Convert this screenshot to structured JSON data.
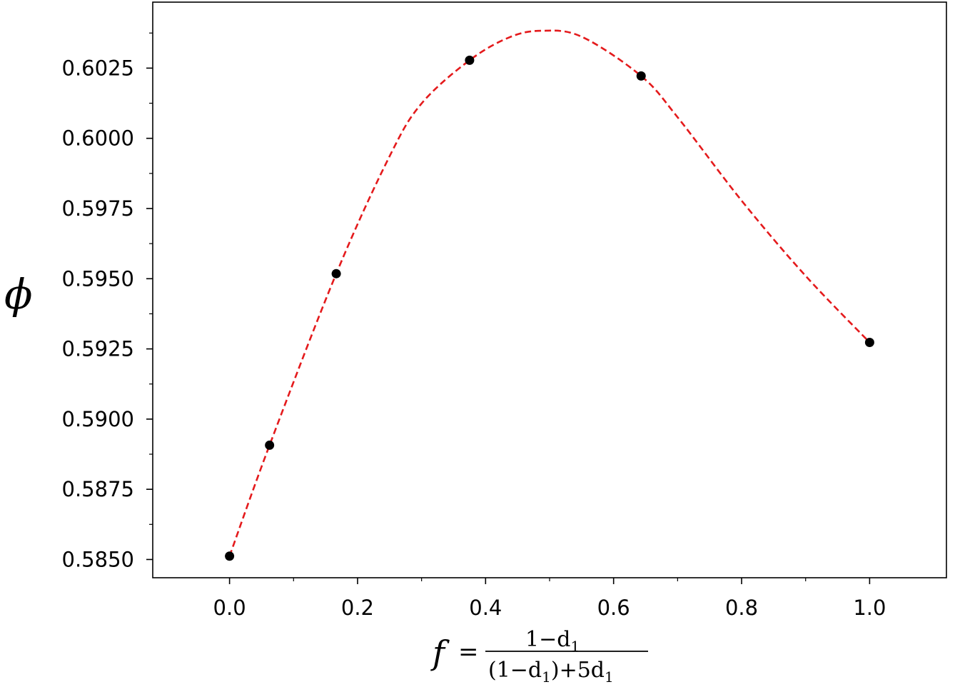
{
  "chart_data": {
    "type": "scatter",
    "title": "",
    "xlabel": "f = (1−d₁) / ((1−d₁)+5d₁)",
    "ylabel": "ϕ",
    "xlim": [
      -0.12,
      1.12
    ],
    "ylim": [
      0.58435,
      0.60485
    ],
    "x_ticks": [
      0.0,
      0.2,
      0.4,
      0.6,
      0.8,
      1.0
    ],
    "x_tick_labels": [
      "0.0",
      "0.2",
      "0.4",
      "0.6",
      "0.8",
      "1.0"
    ],
    "y_ticks": [
      0.585,
      0.5875,
      0.59,
      0.5925,
      0.595,
      0.5975,
      0.6,
      0.6025
    ],
    "y_tick_labels": [
      "0.5850",
      "0.5875",
      "0.5900",
      "0.5925",
      "0.5950",
      "0.5975",
      "0.6000",
      "0.6025"
    ],
    "grid": false,
    "legend": "none",
    "series": [
      {
        "kind": "points",
        "color": "#000000",
        "x": [
          0.0,
          0.0625,
          0.1667,
          0.375,
          0.643,
          1.0
        ],
        "y": [
          0.58512,
          0.58907,
          0.59518,
          0.60278,
          0.60222,
          0.59273
        ]
      },
      {
        "kind": "fit-curve",
        "style": "dashed",
        "color": "#e41a1c",
        "x": [
          0.0,
          0.0625,
          0.1667,
          0.25,
          0.3,
          0.375,
          0.4375,
          0.4875,
          0.55,
          0.643,
          0.7,
          0.8,
          0.9,
          1.0
        ],
        "y": [
          0.58512,
          0.58907,
          0.59518,
          0.59936,
          0.60124,
          0.60278,
          0.6036,
          0.60383,
          0.60362,
          0.60222,
          0.60075,
          0.59778,
          0.5951,
          0.59273
        ]
      }
    ],
    "xlabel_parts": {
      "lhs": "f",
      "eq": "=",
      "numerator": "1−d",
      "numerator_sub": "1",
      "denominator": "(1−d",
      "denominator_sub": "1",
      "denominator_mid": ")+5d",
      "denominator_sub2": "1"
    }
  }
}
